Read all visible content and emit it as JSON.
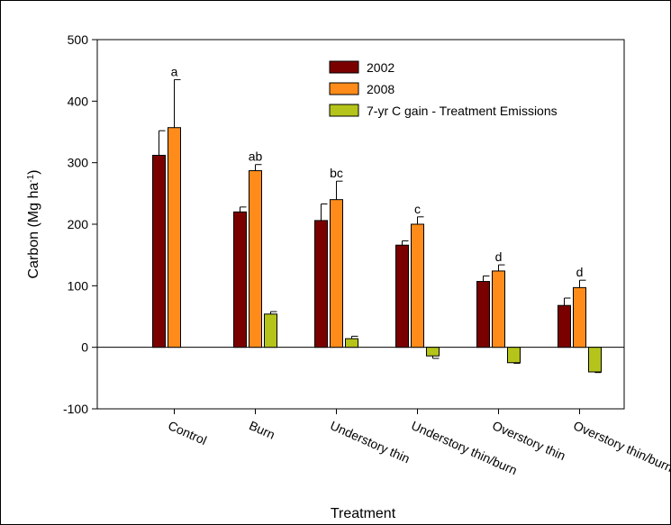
{
  "chart_data": {
    "type": "bar",
    "title": "",
    "xlabel": "Treatment",
    "ylabel": {
      "main": "Carbon (Mg ha",
      "sup": "-1",
      "close": ")"
    },
    "ylim": [
      -100,
      500
    ],
    "yticks": [
      "-100",
      "0",
      "100",
      "200",
      "300",
      "400",
      "500"
    ],
    "ytick_values": [
      -100,
      0,
      100,
      200,
      300,
      400,
      500
    ],
    "categories": [
      "Control",
      "Burn",
      "Understory thin",
      "Understory thin/burn",
      "Overstory thin",
      "Overstory thin/burn"
    ],
    "series": [
      {
        "name": "2002",
        "color": "#7a0000",
        "values": [
          312,
          220,
          206,
          166,
          107,
          68
        ],
        "errors": [
          40,
          8,
          27,
          7,
          9,
          12
        ]
      },
      {
        "name": "2008",
        "color": "#ff8c1a",
        "values": [
          357,
          287,
          240,
          200,
          124,
          97
        ],
        "errors": [
          78,
          10,
          30,
          12,
          10,
          12
        ]
      },
      {
        "name": "7-yr C gain - Treatment Emissions",
        "color": "#b5c41a",
        "values": [
          null,
          54,
          14,
          -14,
          -25,
          -40
        ],
        "errors": [
          null,
          4,
          4,
          4,
          1,
          1
        ]
      }
    ],
    "significance_labels": [
      "a",
      "ab",
      "bc",
      "c",
      "d",
      "d"
    ],
    "legend_position": "top-right",
    "grid": false
  }
}
